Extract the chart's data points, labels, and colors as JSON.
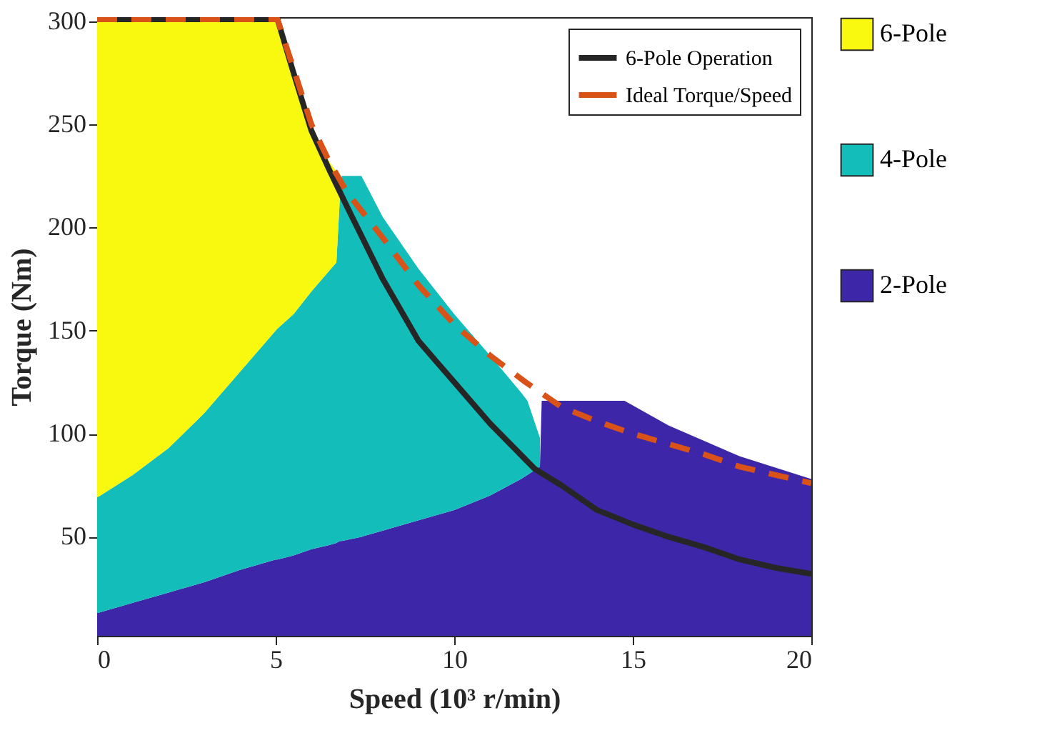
{
  "chart_data": {
    "type": "area",
    "xlabel": "Speed (10³ r/min)",
    "ylabel": "Torque (Nm)",
    "xlim": [
      0,
      20
    ],
    "xticks": [
      0,
      5,
      10,
      15,
      20
    ],
    "ylim": [
      2,
      302
    ],
    "yticks": [
      50,
      100,
      150,
      200,
      250,
      300
    ],
    "stacked": true,
    "grid": false,
    "legend": "top right",
    "x": [
      0,
      1,
      2,
      3,
      4,
      5,
      5.05,
      5.5,
      6,
      6.5,
      6.7,
      6.8,
      6.85,
      7.4,
      8,
      9,
      10,
      11,
      11.87,
      12.05,
      12.4,
      12.45,
      13,
      14,
      14.77,
      16,
      18,
      20
    ],
    "series": [
      {
        "name": "2-Pole",
        "color": "#3e26a8",
        "values": [
          13,
          18,
          23,
          28,
          34,
          39,
          39,
          41,
          44,
          46,
          47,
          48,
          48,
          50,
          53,
          58,
          63,
          70,
          78,
          80,
          84,
          116,
          116,
          116,
          116,
          104,
          89,
          78
        ]
      },
      {
        "name": "4-Pole",
        "color": "#13bdb9",
        "values": [
          56,
          62,
          70,
          82,
          96,
          111,
          112,
          117,
          125,
          133,
          136,
          167,
          177,
          175,
          152,
          122,
          95,
          68,
          42,
          36,
          14,
          null,
          null,
          null,
          null,
          null,
          null,
          null
        ]
      },
      {
        "name": "6-Pole",
        "color": "#f9f90f",
        "values": [
          232,
          221,
          208,
          191,
          171,
          151,
          150,
          117,
          78,
          53,
          44,
          10,
          null,
          null,
          null,
          null,
          null,
          null,
          null,
          null,
          null,
          null,
          null,
          null,
          null,
          null,
          null,
          null
        ]
      },
      {
        "name": "6-Pole Operation",
        "type": "line",
        "color": "#262626",
        "line_style": "solid",
        "x": [
          0,
          5.05,
          5.5,
          6,
          6.5,
          7,
          8,
          9,
          10,
          11,
          12.25,
          13,
          14,
          15,
          16,
          17,
          18,
          19,
          20
        ],
        "values": [
          301,
          301,
          275,
          247,
          228,
          210,
          175,
          145,
          125,
          105,
          83,
          75,
          63,
          56,
          50,
          45,
          39,
          35,
          32
        ]
      },
      {
        "name": "Ideal Torque/Speed",
        "type": "line",
        "color": "#d95319",
        "line_style": "dashed",
        "x": [
          0,
          5.05,
          5.5,
          6,
          6.5,
          7,
          8,
          9,
          10,
          11,
          12,
          13,
          14,
          15,
          16,
          17,
          18,
          19,
          20
        ],
        "values": [
          301,
          301,
          277,
          250,
          232,
          217,
          195,
          172,
          153,
          138,
          125,
          113,
          106,
          100,
          95,
          90,
          84,
          80,
          76
        ]
      }
    ]
  }
}
